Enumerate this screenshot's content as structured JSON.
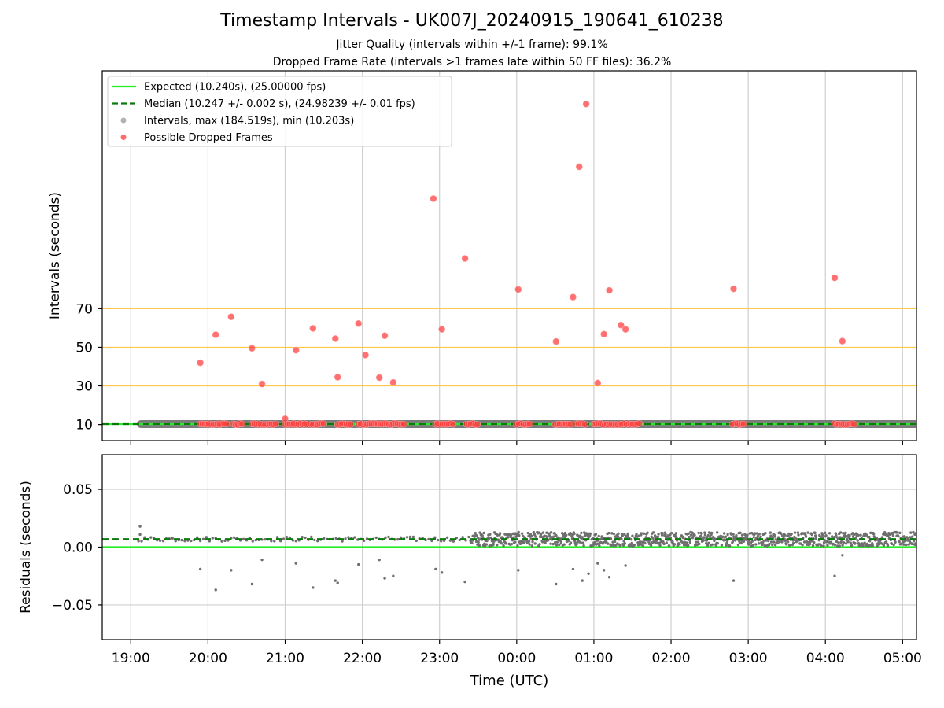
{
  "chart_data": [
    {
      "type": "scatter",
      "title": "Timestamp Intervals - UK007J_20240915_190641_610238",
      "subtitle_lines": [
        "Jitter Quality (intervals within +/-1 frame): 99.1%",
        "Dropped Frame Rate (intervals >1 frames late within 50 FF files): 36.2%"
      ],
      "ylabel": "Intervals (seconds)",
      "xlabel": "",
      "x_ticks": [
        "19:00",
        "20:00",
        "21:00",
        "22:00",
        "23:00",
        "00:00",
        "01:00",
        "02:00",
        "03:00",
        "04:00",
        "05:00"
      ],
      "y_ticks": [
        10,
        30,
        50,
        70
      ],
      "ylim": [
        1.7,
        193.2
      ],
      "xlim_hours": [
        18.63,
        29.18
      ],
      "grid": "vertical",
      "reference_lines": [
        {
          "y": 30,
          "color": "#ffc84a"
        },
        {
          "y": 50,
          "color": "#ffc84a"
        },
        {
          "y": 70,
          "color": "#ffc84a"
        }
      ],
      "legend_position": "top-left",
      "legend": [
        {
          "label": "Expected (10.240s), (25.00000 fps)",
          "style": "solid",
          "color": "#22ee22"
        },
        {
          "label": "Median (10.247 +/- 0.002 s), (24.98239 +/- 0.01 fps)",
          "style": "dashed",
          "color": "#0a7a0a"
        },
        {
          "label": "Intervals, max (184.519s), min (10.203s)",
          "style": "marker",
          "color": "#aaaaaa"
        },
        {
          "label": "Possible Dropped Frames",
          "style": "marker",
          "color": "#ff5a5a"
        }
      ],
      "expected_interval": 10.24,
      "median_interval": 10.247,
      "baseline_interval": 10.24,
      "baseline_x_range": [
        19.13,
        29.18
      ],
      "dropped_frames": [
        [
          19.9,
          42
        ],
        [
          20.1,
          56.5
        ],
        [
          20.3,
          65.8
        ],
        [
          20.57,
          49.5
        ],
        [
          20.7,
          31
        ],
        [
          21.0,
          13
        ],
        [
          21.14,
          48.5
        ],
        [
          21.36,
          59.8
        ],
        [
          21.65,
          54.5
        ],
        [
          21.68,
          34.5
        ],
        [
          21.95,
          62.3
        ],
        [
          22.04,
          46
        ],
        [
          22.22,
          34.3
        ],
        [
          22.29,
          56
        ],
        [
          22.4,
          31.8
        ],
        [
          22.92,
          127
        ],
        [
          23.03,
          59.3
        ],
        [
          23.33,
          96
        ],
        [
          24.02,
          80
        ],
        [
          24.51,
          53
        ],
        [
          24.73,
          76
        ],
        [
          24.81,
          143.5
        ],
        [
          24.9,
          176
        ],
        [
          25.05,
          31.5
        ],
        [
          25.13,
          56.8
        ],
        [
          25.2,
          79.5
        ],
        [
          25.35,
          61.5
        ],
        [
          25.41,
          59.3
        ],
        [
          26.81,
          80.3
        ],
        [
          28.12,
          86
        ],
        [
          28.22,
          53.2
        ]
      ],
      "dropped_clusters_at_baseline": [
        [
          19.9,
          20.25
        ],
        [
          20.33,
          20.45
        ],
        [
          20.57,
          20.9
        ],
        [
          21.0,
          21.3
        ],
        [
          21.33,
          21.5
        ],
        [
          21.68,
          21.85
        ],
        [
          21.95,
          22.55
        ],
        [
          22.95,
          23.2
        ],
        [
          23.35,
          23.5
        ],
        [
          24.0,
          24.18
        ],
        [
          24.5,
          24.7
        ],
        [
          24.77,
          24.9
        ],
        [
          25.0,
          25.6
        ],
        [
          26.8,
          26.95
        ],
        [
          28.12,
          28.38
        ]
      ]
    },
    {
      "type": "scatter",
      "title": "",
      "ylabel": "Residuals (seconds)",
      "xlabel": "Time (UTC)",
      "x_ticks": [
        "19:00",
        "20:00",
        "21:00",
        "22:00",
        "23:00",
        "00:00",
        "01:00",
        "02:00",
        "03:00",
        "04:00",
        "05:00"
      ],
      "y_ticks": [
        "0.05",
        "0.00",
        "−0.05"
      ],
      "y_tick_values": [
        0.05,
        0.0,
        -0.05
      ],
      "ylim": [
        -0.08,
        0.08
      ],
      "xlim_hours": [
        18.63,
        29.18
      ],
      "grid": "both",
      "expected_residual": 0.0,
      "median_residual": 0.007,
      "sparse_range_hours": [
        19.1,
        23.4
      ],
      "dense_range_hours": [
        23.4,
        29.18
      ],
      "negative_outliers": [
        [
          19.9,
          -0.019
        ],
        [
          20.1,
          -0.037
        ],
        [
          20.3,
          -0.02
        ],
        [
          20.57,
          -0.032
        ],
        [
          20.7,
          -0.011
        ],
        [
          21.14,
          -0.014
        ],
        [
          21.36,
          -0.035
        ],
        [
          21.65,
          -0.029
        ],
        [
          21.68,
          -0.031
        ],
        [
          21.95,
          -0.015
        ],
        [
          22.22,
          -0.011
        ],
        [
          22.29,
          -0.027
        ],
        [
          22.4,
          -0.025
        ],
        [
          22.95,
          -0.019
        ],
        [
          23.03,
          -0.022
        ],
        [
          23.33,
          -0.03
        ],
        [
          24.02,
          -0.02
        ],
        [
          24.51,
          -0.032
        ],
        [
          24.73,
          -0.019
        ],
        [
          24.85,
          -0.029
        ],
        [
          24.93,
          -0.023
        ],
        [
          25.05,
          -0.014
        ],
        [
          25.13,
          -0.02
        ],
        [
          25.2,
          -0.026
        ],
        [
          25.41,
          -0.016
        ],
        [
          26.81,
          -0.029
        ],
        [
          28.12,
          -0.025
        ],
        [
          28.22,
          -0.007
        ]
      ]
    }
  ]
}
